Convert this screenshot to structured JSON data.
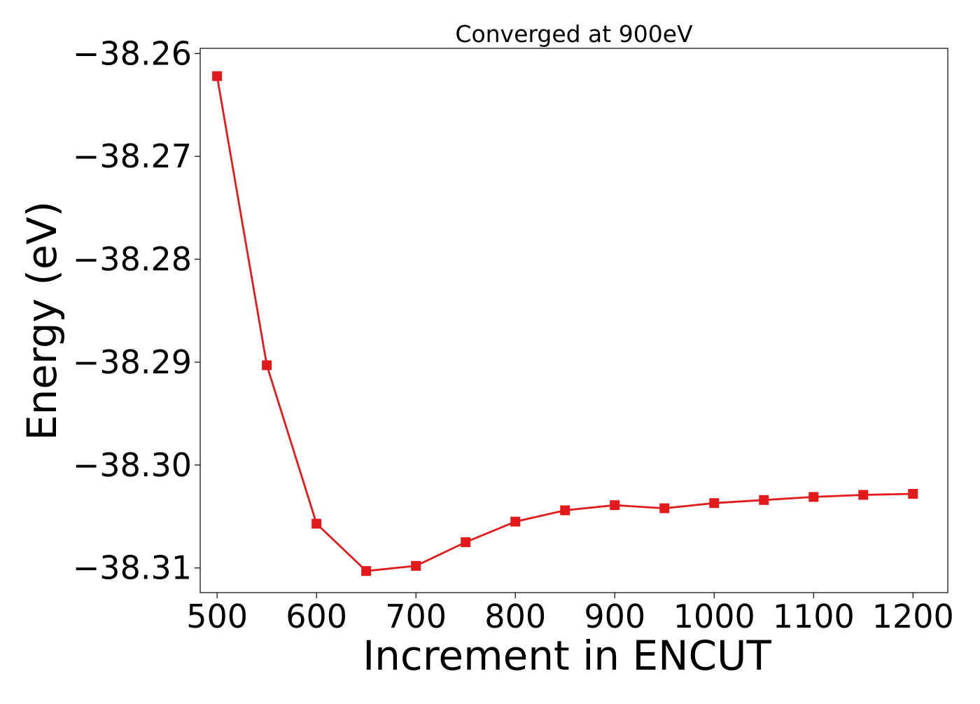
{
  "chart_data": {
    "type": "line",
    "title": "Converged at 900eV",
    "xlabel": "Increment in ENCUT",
    "ylabel": "Energy (eV)",
    "xlim": [
      483,
      1235
    ],
    "ylim": [
      -38.3124,
      -38.2595
    ],
    "x_ticks": [
      500,
      600,
      700,
      800,
      900,
      1000,
      1100,
      1200
    ],
    "y_ticks": [
      -38.26,
      -38.27,
      -38.28,
      -38.29,
      -38.3,
      -38.31
    ],
    "y_tick_labels": [
      "−38.26",
      "−38.27",
      "−38.28",
      "−38.29",
      "−38.30",
      "−38.31"
    ],
    "grid": false,
    "series": [
      {
        "color": "#e31a1c",
        "marker": "square",
        "x": [
          500,
          550,
          600,
          650,
          700,
          750,
          800,
          850,
          900,
          950,
          1000,
          1050,
          1100,
          1150,
          1200
        ],
        "y": [
          -38.2622,
          -38.2903,
          -38.3057,
          -38.3103,
          -38.3098,
          -38.3075,
          -38.3055,
          -38.3044,
          -38.3039,
          -38.3042,
          -38.3037,
          -38.3034,
          -38.3031,
          -38.3029,
          -38.3028
        ]
      }
    ]
  }
}
